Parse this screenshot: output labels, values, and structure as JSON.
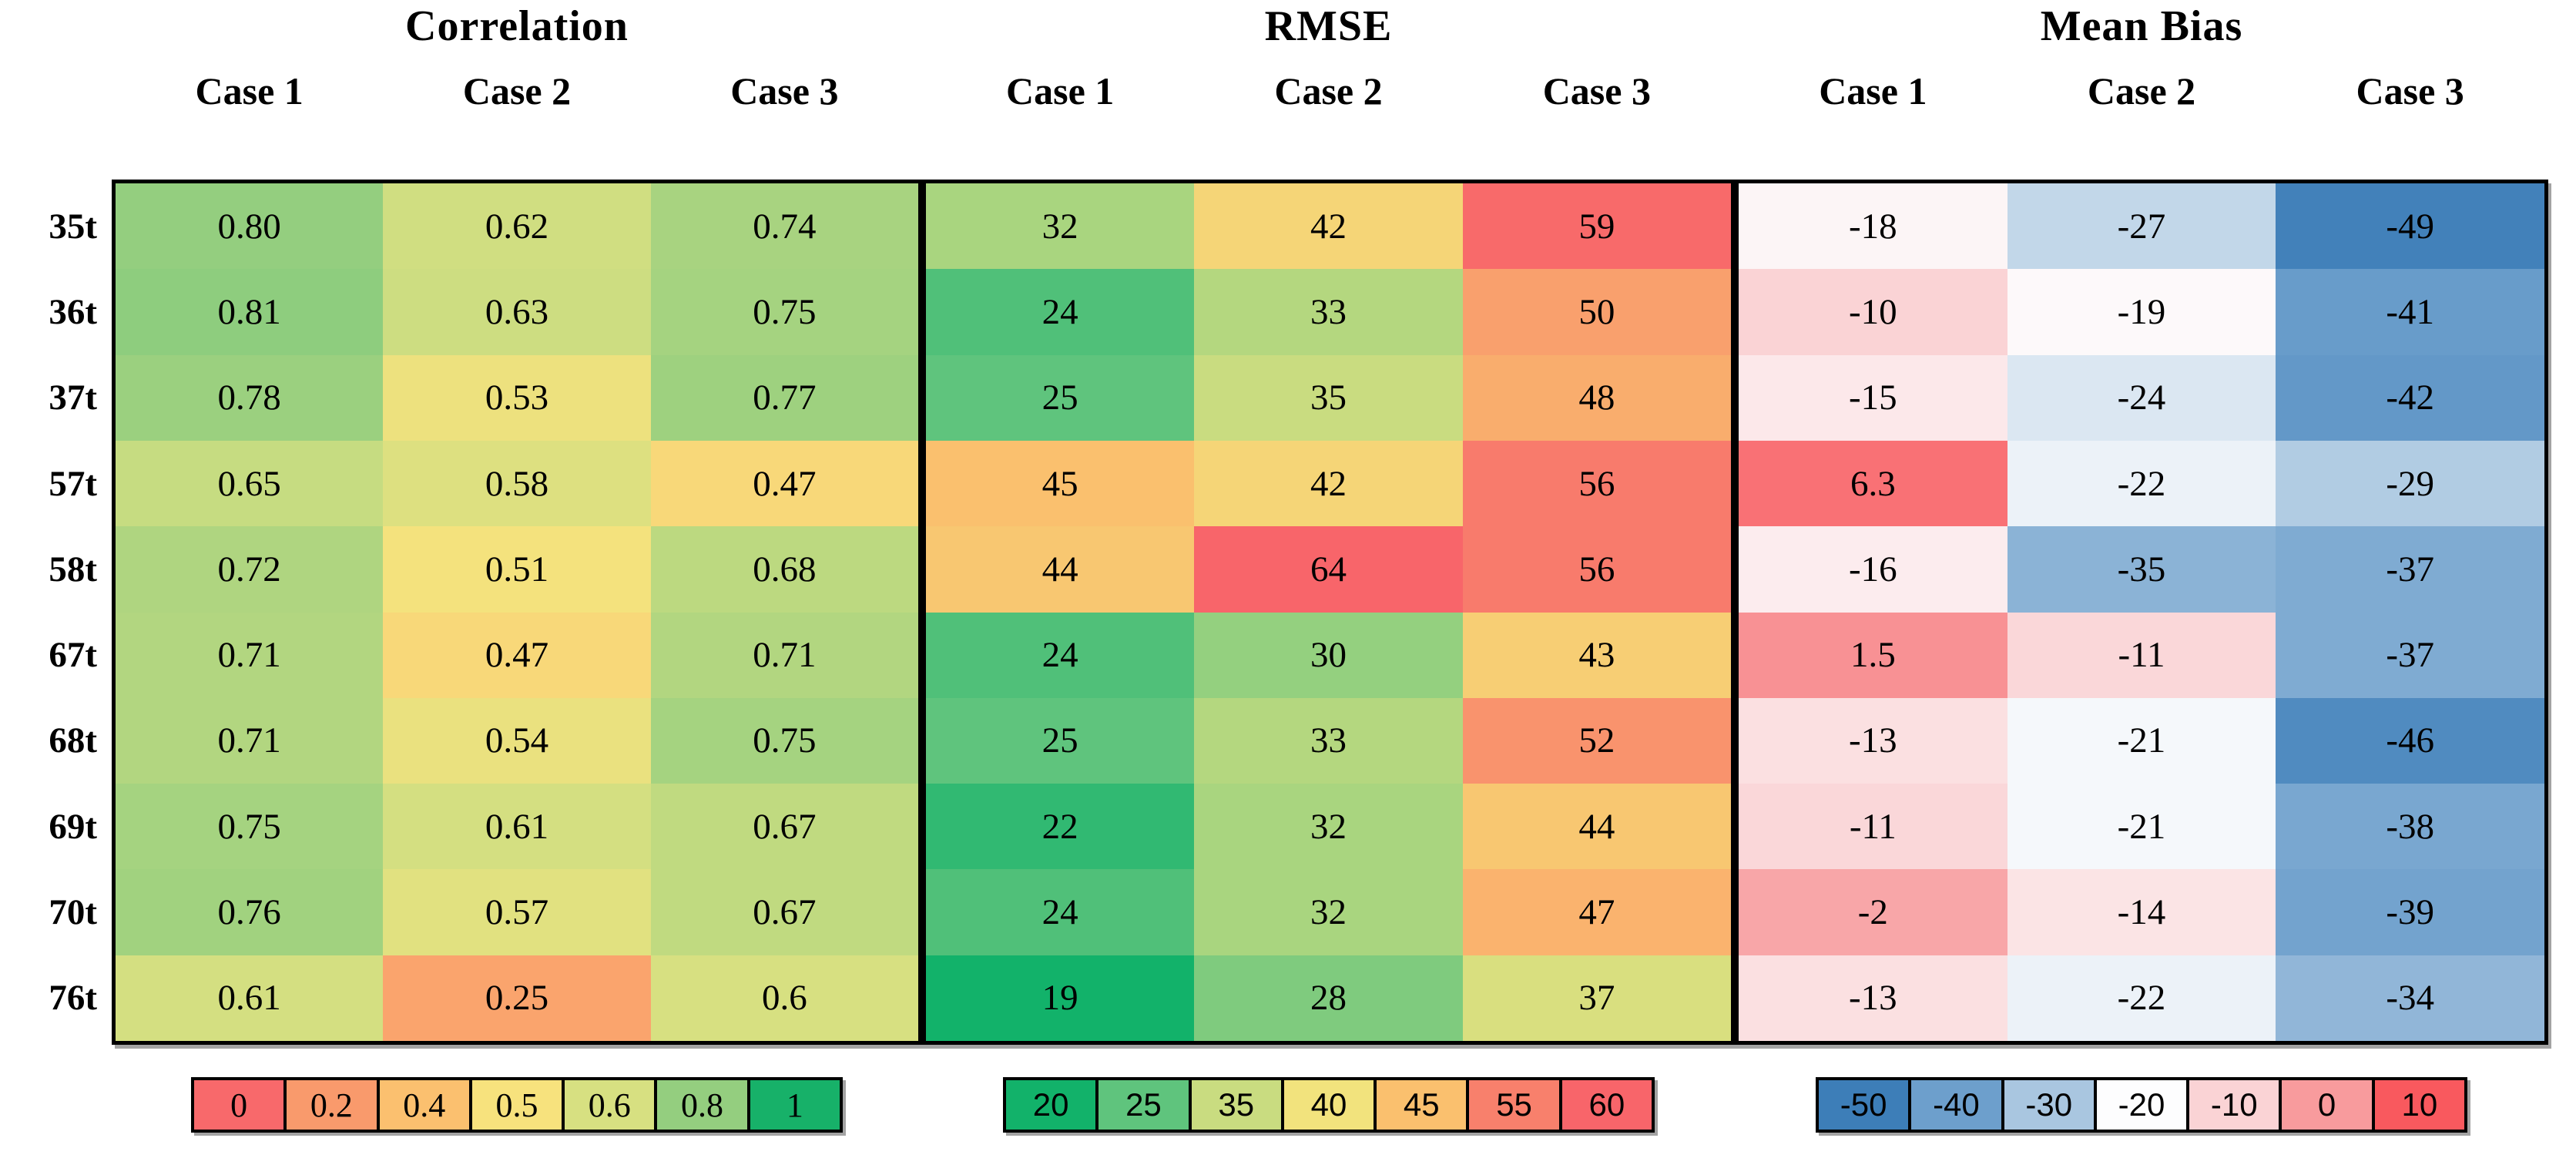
{
  "page": {
    "background": "#ffffff",
    "text_color": "#000000"
  },
  "chart_data": {
    "type": "heatmap",
    "row_labels": [
      "35t",
      "36t",
      "37t",
      "57t",
      "58t",
      "67t",
      "68t",
      "69t",
      "70t",
      "76t"
    ],
    "sections": [
      {
        "title": "Correlation",
        "columns": [
          "Case 1",
          "Case 2",
          "Case 3"
        ],
        "cells": [
          [
            "0.80",
            "0.62",
            "0.74"
          ],
          [
            "0.81",
            "0.63",
            "0.75"
          ],
          [
            "0.78",
            "0.53",
            "0.77"
          ],
          [
            "0.65",
            "0.58",
            "0.47"
          ],
          [
            "0.72",
            "0.51",
            "0.68"
          ],
          [
            "0.71",
            "0.47",
            "0.71"
          ],
          [
            "0.71",
            "0.54",
            "0.75"
          ],
          [
            "0.75",
            "0.61",
            "0.67"
          ],
          [
            "0.76",
            "0.57",
            "0.67"
          ],
          [
            "0.61",
            "0.25",
            "0.6"
          ]
        ],
        "legend": {
          "labels": [
            "0",
            "0.2",
            "0.4",
            "0.5",
            "0.6",
            "0.8",
            "1"
          ],
          "anchors": [
            [
              0,
              "#F8696B"
            ],
            [
              0.2,
              "#F99A6C"
            ],
            [
              0.4,
              "#FBC06F"
            ],
            [
              0.5,
              "#F7E27D"
            ],
            [
              0.6,
              "#D7E081"
            ],
            [
              0.8,
              "#94CE7F"
            ],
            [
              1,
              "#17B169"
            ]
          ]
        }
      },
      {
        "title": "RMSE",
        "columns": [
          "Case 1",
          "Case 2",
          "Case 3"
        ],
        "cells": [
          [
            "32",
            "42",
            "59"
          ],
          [
            "24",
            "33",
            "50"
          ],
          [
            "25",
            "35",
            "48"
          ],
          [
            "45",
            "42",
            "56"
          ],
          [
            "44",
            "64",
            "56"
          ],
          [
            "24",
            "30",
            "43"
          ],
          [
            "25",
            "33",
            "52"
          ],
          [
            "22",
            "32",
            "44"
          ],
          [
            "24",
            "32",
            "47"
          ],
          [
            "19",
            "28",
            "37"
          ]
        ],
        "legend": {
          "labels": [
            "20",
            "25",
            "35",
            "40",
            "45",
            "55",
            "60"
          ],
          "anchors": [
            [
              20,
              "#12B26A"
            ],
            [
              25,
              "#5FC47D"
            ],
            [
              35,
              "#C9DC80"
            ],
            [
              40,
              "#F2E37D"
            ],
            [
              45,
              "#FAC06E"
            ],
            [
              55,
              "#F8806C"
            ],
            [
              60,
              "#F8656A"
            ]
          ]
        }
      },
      {
        "title": "Mean Bias",
        "columns": [
          "Case 1",
          "Case 2",
          "Case 3"
        ],
        "cells": [
          [
            "-18",
            "-27",
            "-49"
          ],
          [
            "-10",
            "-19",
            "-41"
          ],
          [
            "-15",
            "-24",
            "-42"
          ],
          [
            "6.3",
            "-22",
            "-29"
          ],
          [
            "-16",
            "-35",
            "-37"
          ],
          [
            "1.5",
            "-11",
            "-37"
          ],
          [
            "-13",
            "-21",
            "-46"
          ],
          [
            "-11",
            "-21",
            "-38"
          ],
          [
            "-2",
            "-14",
            "-39"
          ],
          [
            "-13",
            "-22",
            "-34"
          ]
        ],
        "legend": {
          "labels": [
            "-50",
            "-40",
            "-30",
            "-20",
            "-10",
            "0",
            "10"
          ],
          "anchors": [
            [
              -50,
              "#3D7EB8"
            ],
            [
              -40,
              "#6D9FCC"
            ],
            [
              -30,
              "#A9C6E0"
            ],
            [
              -20,
              "#FDFDFE"
            ],
            [
              -10,
              "#FAD3D5"
            ],
            [
              0,
              "#F89B9D"
            ],
            [
              10,
              "#F9595E"
            ]
          ]
        }
      }
    ]
  }
}
